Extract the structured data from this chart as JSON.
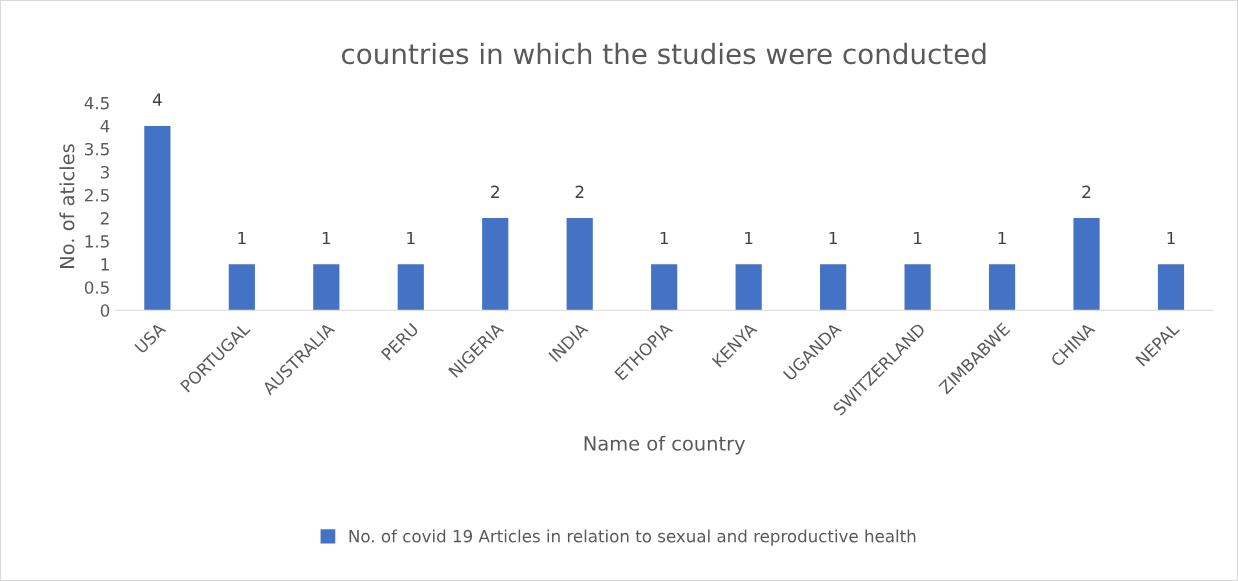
{
  "chart_data": {
    "type": "bar",
    "title": "countries in which the studies were conducted",
    "xlabel": "Name of country",
    "ylabel": "No. of aticles",
    "categories": [
      "USA",
      "PORTUGAL",
      "AUSTRALIA",
      "PERU",
      "NIGERIA",
      "INDIA",
      "ETHOPIA",
      "KENYA",
      "UGANDA",
      "SWITZERLAND",
      "ZIMBABWE",
      "CHINA",
      "NEPAL"
    ],
    "series": [
      {
        "name": "No. of covid 19 Articles in relation to sexual and reproductive health",
        "color": "#4472c4",
        "values": [
          4,
          1,
          1,
          1,
          2,
          2,
          1,
          1,
          1,
          1,
          1,
          2,
          1
        ]
      }
    ],
    "ylim": [
      0,
      4.5
    ],
    "yticks": [
      0,
      0.5,
      1,
      1.5,
      2,
      2.5,
      3,
      3.5,
      4,
      4.5
    ],
    "data_labels": true,
    "grid": false,
    "legend": "bottom"
  }
}
